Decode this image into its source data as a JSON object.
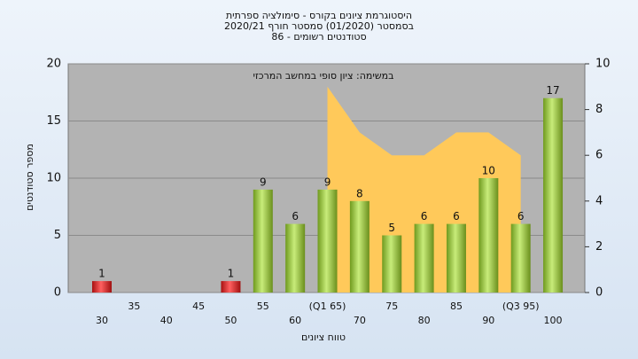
{
  "chart_data": {
    "type": "bar",
    "title": "היסטוגרמת ציונים בקורס - סימולציה ספרתית",
    "subtitle": "בסמסטר (01/2020) סמסטר חורף 2020/21",
    "subtitle2": "סטודנטים רשומים - 86",
    "annotation": "במשימה: ציון סופי במחשב המרכזי",
    "xlabel": "טווח ציונים",
    "ylabel": "מספר סטודנטים",
    "categories": [
      "30",
      "35",
      "40",
      "45",
      "50",
      "55",
      "60",
      "(Q1 65)",
      "70",
      "75",
      "80",
      "85",
      "90",
      "(Q3 95)",
      "100"
    ],
    "values": [
      1,
      0,
      0,
      0,
      1,
      9,
      6,
      9,
      8,
      5,
      6,
      6,
      10,
      6,
      17
    ],
    "colors": [
      "red",
      "green",
      "green",
      "green",
      "red",
      "green",
      "green",
      "green",
      "green",
      "green",
      "green",
      "green",
      "green",
      "green",
      "green"
    ],
    "area": {
      "values": [
        null,
        null,
        null,
        null,
        null,
        null,
        null,
        9,
        7,
        6,
        6,
        7,
        7,
        6,
        null
      ],
      "color": "#ffc95a",
      "axis": "y2"
    },
    "ylim": [
      0,
      20
    ],
    "yticks": [
      0,
      5,
      10,
      15,
      20
    ],
    "y2lim": [
      0,
      10
    ],
    "y2ticks": [
      0,
      2,
      4,
      6,
      8,
      10
    ],
    "grid": true
  }
}
